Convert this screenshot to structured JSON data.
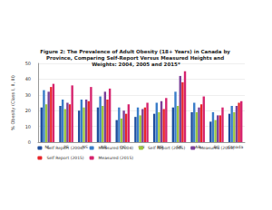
{
  "chart_data": {
    "type": "bar",
    "title": "Figure 2: The Prevalence of Adult Obesity (18+ Years) in Canada by Province, Comparing Self-Report Versus Measured Heights and Weights: 2004, 2005 and 2015*",
    "y_label": "% Obesity (Class I, II, III)",
    "categories": [
      "NL",
      "PE",
      "NS",
      "NB",
      "QC",
      "ON",
      "MB",
      "SK",
      "AB",
      "BC",
      "Canada"
    ],
    "series": [
      {
        "name": "Self Report (2004)",
        "color": "#1f4e9c",
        "values": [
          22,
          23,
          20,
          22,
          14,
          16,
          18,
          22,
          19,
          13,
          18
        ]
      },
      {
        "name": "Measured (2004)",
        "color": "#3a7dc9",
        "values": [
          33,
          27,
          27,
          29,
          22,
          22,
          25,
          32,
          25,
          19,
          23
        ]
      },
      {
        "name": "Self Report (2005)",
        "color": "#9bc53d",
        "values": [
          24,
          21,
          22,
          23,
          15,
          17,
          19,
          23,
          19,
          14,
          19
        ]
      },
      {
        "name": "Measured (2005)",
        "color": "#7b3f98",
        "values": [
          32,
          25,
          27,
          32,
          20,
          21,
          26,
          42,
          22,
          17,
          23
        ]
      },
      {
        "name": "Self Report (2015)",
        "color": "#e8262a",
        "values": [
          35,
          24,
          26,
          27,
          18,
          22,
          21,
          38,
          24,
          17,
          25
        ]
      },
      {
        "name": "Measured (2015)",
        "color": "#d6246e",
        "values": [
          37,
          36,
          35,
          34,
          24,
          25,
          28,
          45,
          29,
          22,
          26
        ]
      }
    ],
    "ylim": [
      0,
      50
    ],
    "yticks": [
      0,
      10,
      20,
      30,
      40,
      50
    ],
    "grid": true,
    "legend": "bottom"
  }
}
